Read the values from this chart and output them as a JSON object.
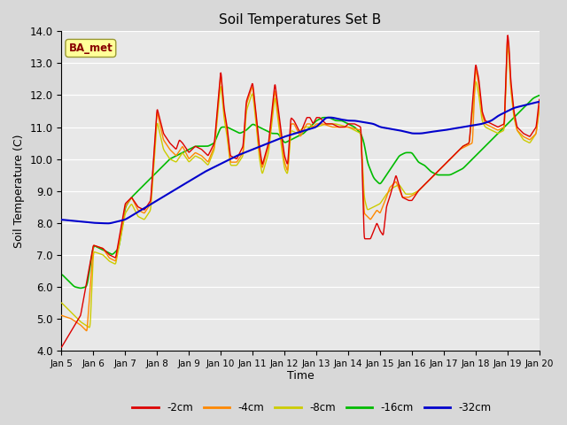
{
  "title": "Soil Temperatures Set B",
  "xlabel": "Time",
  "ylabel": "Soil Temperature (C)",
  "ylim": [
    4.0,
    14.0
  ],
  "yticks": [
    4.0,
    5.0,
    6.0,
    7.0,
    8.0,
    9.0,
    10.0,
    11.0,
    12.0,
    13.0,
    14.0
  ],
  "bg_color": "#e0e0e0",
  "plot_bg_color": "#e8e8e8",
  "line_colors": {
    "-2cm": "#dd0000",
    "-4cm": "#ff8800",
    "-8cm": "#cccc00",
    "-16cm": "#00bb00",
    "-32cm": "#0000cc"
  },
  "label_box_facecolor": "#ffff99",
  "label_box_edgecolor": "#999933",
  "label_text": "BA_met",
  "label_text_color": "#880000",
  "xtick_labels": [
    "Jan 5",
    "Jan 6",
    "Jan 7",
    "Jan 8",
    "Jan 9",
    "Jan 10",
    "Jan 11",
    "Jan 12",
    "Jan 13",
    "Jan 14",
    "Jan 15",
    "Jan 16",
    "Jan 17",
    "Jan 18",
    "Jan 19",
    "Jan 20"
  ]
}
